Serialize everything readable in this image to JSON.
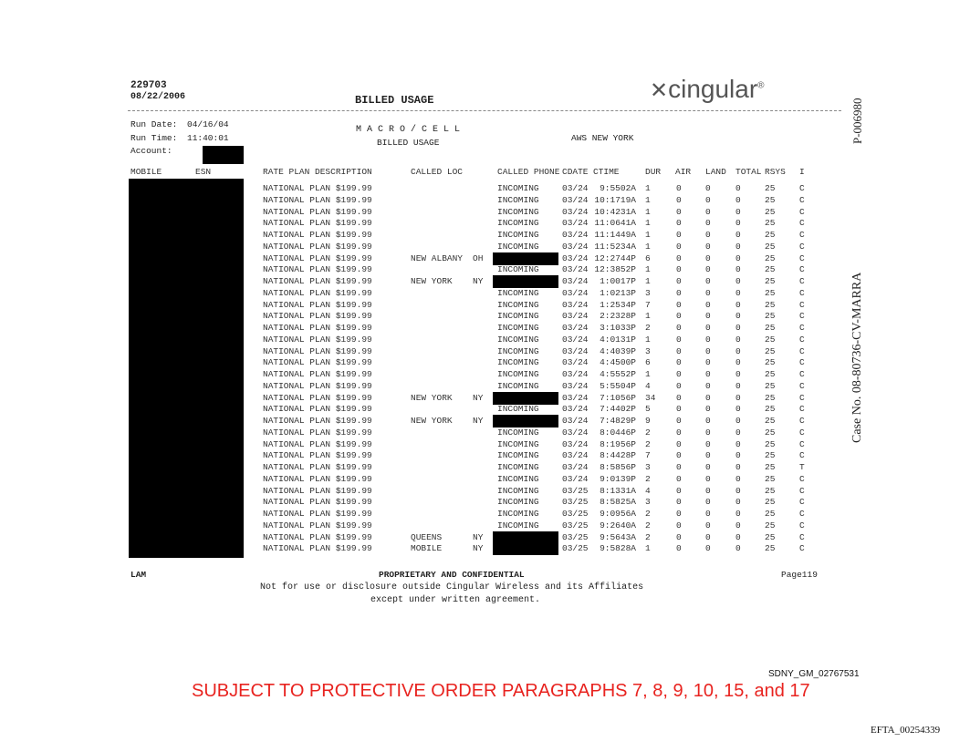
{
  "header": {
    "doc_number": "229703",
    "doc_date": "08/22/2006",
    "title": "BILLED USAGE",
    "logo_text": "cingular",
    "run_date_label": "Run Date:",
    "run_date": "04/16/04",
    "run_time_label": "Run Time:",
    "run_time": "11:40:01",
    "account_label": "Account:",
    "macro_cell": "M A C R O / C E L L",
    "sub_title": "BILLED USAGE",
    "region": "AWS NEW YORK"
  },
  "side": {
    "exhibit": "P-006980",
    "case": "Case No. 08-80736-CV-MARRA"
  },
  "table": {
    "columns": [
      "MOBILE",
      "ESN",
      "RATE PLAN DESCRIPTION",
      "CALLED LOC",
      "CALLED PHONE",
      "CDATE",
      "CTIME",
      "DUR",
      "AIR",
      "LAND",
      "TOTAL",
      "RSYS",
      "I"
    ],
    "rate_plan": "NATIONAL PLAN $199.99",
    "rows": [
      [
        "",
        "",
        "INCOMING",
        "03/24",
        "9:5502A",
        "1",
        "0",
        "0",
        "0",
        "25",
        "C"
      ],
      [
        "",
        "",
        "INCOMING",
        "03/24",
        "10:1719A",
        "1",
        "0",
        "0",
        "0",
        "25",
        "C"
      ],
      [
        "",
        "",
        "INCOMING",
        "03/24",
        "10:4231A",
        "1",
        "0",
        "0",
        "0",
        "25",
        "C"
      ],
      [
        "",
        "",
        "INCOMING",
        "03/24",
        "11:0641A",
        "1",
        "0",
        "0",
        "0",
        "25",
        "C"
      ],
      [
        "",
        "",
        "INCOMING",
        "03/24",
        "11:1449A",
        "1",
        "0",
        "0",
        "0",
        "25",
        "C"
      ],
      [
        "",
        "",
        "INCOMING",
        "03/24",
        "11:5234A",
        "1",
        "0",
        "0",
        "0",
        "25",
        "C"
      ],
      [
        "NEW ALBANY",
        "OH",
        "",
        "03/24",
        "12:2744P",
        "6",
        "0",
        "0",
        "0",
        "25",
        "C"
      ],
      [
        "",
        "",
        "INCOMING",
        "03/24",
        "12:3852P",
        "1",
        "0",
        "0",
        "0",
        "25",
        "C"
      ],
      [
        "NEW YORK",
        "NY",
        "",
        "03/24",
        "1:0017P",
        "1",
        "0",
        "0",
        "0",
        "25",
        "C"
      ],
      [
        "",
        "",
        "INCOMING",
        "03/24",
        "1:0213P",
        "3",
        "0",
        "0",
        "0",
        "25",
        "C"
      ],
      [
        "",
        "",
        "INCOMING",
        "03/24",
        "1:2534P",
        "7",
        "0",
        "0",
        "0",
        "25",
        "C"
      ],
      [
        "",
        "",
        "INCOMING",
        "03/24",
        "2:2328P",
        "1",
        "0",
        "0",
        "0",
        "25",
        "C"
      ],
      [
        "",
        "",
        "INCOMING",
        "03/24",
        "3:1033P",
        "2",
        "0",
        "0",
        "0",
        "25",
        "C"
      ],
      [
        "",
        "",
        "INCOMING",
        "03/24",
        "4:0131P",
        "1",
        "0",
        "0",
        "0",
        "25",
        "C"
      ],
      [
        "",
        "",
        "INCOMING",
        "03/24",
        "4:4039P",
        "3",
        "0",
        "0",
        "0",
        "25",
        "C"
      ],
      [
        "",
        "",
        "INCOMING",
        "03/24",
        "4:4500P",
        "6",
        "0",
        "0",
        "0",
        "25",
        "C"
      ],
      [
        "",
        "",
        "INCOMING",
        "03/24",
        "4:5552P",
        "1",
        "0",
        "0",
        "0",
        "25",
        "C"
      ],
      [
        "",
        "",
        "INCOMING",
        "03/24",
        "5:5504P",
        "4",
        "0",
        "0",
        "0",
        "25",
        "C"
      ],
      [
        "NEW YORK",
        "NY",
        "",
        "03/24",
        "7:1056P",
        "34",
        "0",
        "0",
        "0",
        "25",
        "C"
      ],
      [
        "",
        "",
        "INCOMING",
        "03/24",
        "7:4402P",
        "5",
        "0",
        "0",
        "0",
        "25",
        "C"
      ],
      [
        "NEW YORK",
        "NY",
        "",
        "03/24",
        "7:4829P",
        "9",
        "0",
        "0",
        "0",
        "25",
        "C"
      ],
      [
        "",
        "",
        "INCOMING",
        "03/24",
        "8:0446P",
        "2",
        "0",
        "0",
        "0",
        "25",
        "C"
      ],
      [
        "",
        "",
        "INCOMING",
        "03/24",
        "8:1956P",
        "2",
        "0",
        "0",
        "0",
        "25",
        "C"
      ],
      [
        "",
        "",
        "INCOMING",
        "03/24",
        "8:4428P",
        "7",
        "0",
        "0",
        "0",
        "25",
        "C"
      ],
      [
        "",
        "",
        "INCOMING",
        "03/24",
        "8:5856P",
        "3",
        "0",
        "0",
        "0",
        "25",
        "T"
      ],
      [
        "",
        "",
        "INCOMING",
        "03/24",
        "9:0139P",
        "2",
        "0",
        "0",
        "0",
        "25",
        "C"
      ],
      [
        "",
        "",
        "INCOMING",
        "03/25",
        "8:1331A",
        "4",
        "0",
        "0",
        "0",
        "25",
        "C"
      ],
      [
        "",
        "",
        "INCOMING",
        "03/25",
        "8:5825A",
        "3",
        "0",
        "0",
        "0",
        "25",
        "C"
      ],
      [
        "",
        "",
        "INCOMING",
        "03/25",
        "9:0956A",
        "2",
        "0",
        "0",
        "0",
        "25",
        "C"
      ],
      [
        "",
        "",
        "INCOMING",
        "03/25",
        "9:2640A",
        "2",
        "0",
        "0",
        "0",
        "25",
        "C"
      ],
      [
        "QUEENS",
        "NY",
        "",
        "03/25",
        "9:5643A",
        "2",
        "0",
        "0",
        "0",
        "25",
        "C"
      ],
      [
        "MOBILE",
        "NY",
        "",
        "03/25",
        "9:5828A",
        "1",
        "0",
        "0",
        "0",
        "25",
        "C"
      ]
    ]
  },
  "footer": {
    "left": "LAM",
    "center": "PROPRIETARY AND CONFIDENTIAL",
    "page": "Page119",
    "line1": "Not for use or disclosure outside Cingular Wireless and its Affiliates",
    "line2": "except under written agreement."
  },
  "stamps": {
    "bates": "SDNY_GM_02767531",
    "protective": "SUBJECT TO PROTECTIVE ORDER PARAGRAPHS 7, 8, 9, 10, 15, and 17",
    "efta": "EFTA_00254339",
    "protective_color": "#e8231f"
  }
}
